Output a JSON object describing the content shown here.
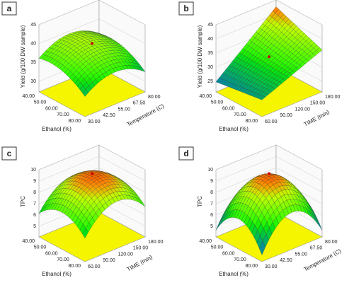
{
  "panels": [
    {
      "label": "a",
      "z_axis": {
        "title": "Yield (g/100 DW sample)",
        "ticks": [
          "30",
          "35",
          "40",
          "45"
        ]
      },
      "x_axis": {
        "title": "Ethanol (%)",
        "ticks": [
          "40.00",
          "50.00",
          "60.00",
          "70.00",
          "80.00"
        ]
      },
      "y_axis": {
        "title": "Temperature (C)",
        "ticks": [
          "30.00",
          "42.50",
          "55.00",
          "67.50",
          "80.00"
        ]
      }
    },
    {
      "label": "b",
      "z_axis": {
        "title": "Yield (g/100 DW sample)",
        "ticks": [
          "25",
          "30",
          "35",
          "40",
          "45"
        ]
      },
      "x_axis": {
        "title": "Ethanol (%)",
        "ticks": [
          "40.00",
          "50.00",
          "60.00",
          "70.00",
          "80.00"
        ]
      },
      "y_axis": {
        "title": "TIME (min)",
        "ticks": [
          "60.00",
          "90.00",
          "120.00",
          "150.00",
          "180.00"
        ]
      }
    },
    {
      "label": "c",
      "z_axis": {
        "title": "TPC",
        "ticks": [
          "5",
          "6",
          "7",
          "8",
          "9",
          "10"
        ]
      },
      "x_axis": {
        "title": "Ethanol (%)",
        "ticks": [
          "40.00",
          "50.00",
          "60.00",
          "70.00",
          "80.00"
        ]
      },
      "y_axis": {
        "title": "TIME (min)",
        "ticks": [
          "60.00",
          "90.00",
          "120.00",
          "150.00",
          "180.00"
        ]
      }
    },
    {
      "label": "d",
      "z_axis": {
        "title": "TPC",
        "ticks": [
          "5",
          "6",
          "7",
          "8",
          "9",
          "10"
        ]
      },
      "x_axis": {
        "title": "Ethanol (%)",
        "ticks": [
          "40.00",
          "50.00",
          "60.00",
          "70.00",
          "80.00"
        ]
      },
      "y_axis": {
        "title": "Temperature (C)",
        "ticks": [
          "30.00",
          "42.50",
          "55.00",
          "67.50",
          "80.00"
        ]
      }
    }
  ]
}
